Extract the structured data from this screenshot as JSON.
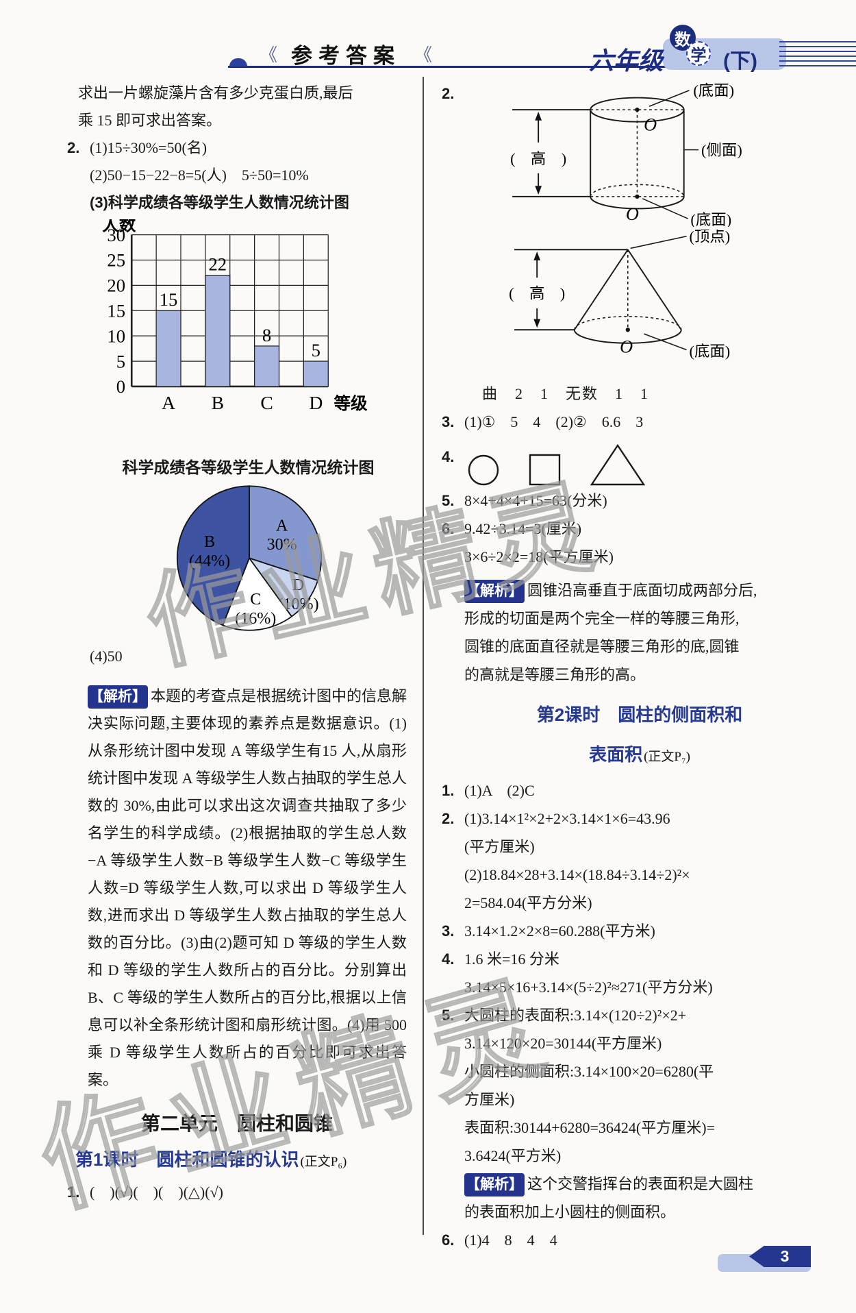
{
  "header": {
    "left_mark": "《",
    "title": "参考答案",
    "right_mark": "《",
    "grade": "六年级",
    "subject_top": "数",
    "subject_bottom": "学",
    "volume": "(下)"
  },
  "watermark": "作业精灵",
  "footer": {
    "page_number": "3"
  },
  "left_column": {
    "intro": "求出一片螺旋藻片含有多少克蛋白质,最后\n乘 15 即可求出答案。",
    "q2_num": "2.",
    "q2_lines": "(1)15÷30%=50(名)\n(2)50−15−22−8=5(人)　5÷50=10%",
    "q2_sub3": "(3)科学成绩各等级学生人数情况统计图",
    "answer_4": "(4)50",
    "analysis_label": "【解析】",
    "analysis_text": "本题的考查点是根据统计图中的信息解决实际问题,主要体现的素养点是数据意识。(1)从条形统计图中发现 A 等级学生有15 人,从扇形统计图中发现 A 等级学生人数占抽取的学生总人数的 30%,由此可以求出这次调查共抽取了多少名学生的科学成绩。(2)根据抽取的学生总人数−A 等级学生人数−B 等级学生人数−C 等级学生人数=D 等级学生人数,可以求出 D 等级学生人数,进而求出 D 等级学生人数占抽取的学生总人数的百分比。(3)由(2)题可知 D 等级的学生人数和 D 等级的学生人数所占的百分比。分别算出 B、C 等级的学生人数所占的百分比,根据以上信息可以补全条形统计图和扇形统计图。(4)用 500 乘 D 等级学生人数所占的百分比即可求出答案。",
    "unit_header": "第二单元　圆柱和圆锥",
    "lesson1_title": "第1课时　圆柱和圆锥的认识",
    "lesson1_ref": "(正文P₆)",
    "l1_q1_num": "1.",
    "l1_q1": "(　)(√)(　)(　)(△)(√)"
  },
  "right_column": {
    "q2_num": "2.",
    "cylinder_labels": {
      "base_top": "(底面)",
      "height": "(　高　)",
      "side": "(侧面)",
      "base_bottom": "(底面)",
      "center_top": "O",
      "center_bottom": "O"
    },
    "cone_labels": {
      "apex": "(顶点)",
      "height": "(　高　)",
      "base": "(底面)",
      "center": "O"
    },
    "fill_answers": "曲　2　1　无数　1　1",
    "q3_num": "3.",
    "q3": "(1)①　5　4　(2)②　6.6　3",
    "q4_num": "4.",
    "q5_num": "5.",
    "q5": "8×4+4×4+15=63(分米)",
    "q6_num": "6.",
    "q6": "9.42÷3.14=3(厘米)\n3×6÷2×2=18(平方厘米)",
    "analysis1_label": "【解析】",
    "analysis1": "圆锥沿高垂直于底面切成两部分后,\n形成的切面是两个完全一样的等腰三角形,\n圆锥的底面直径就是等腰三角形的底,圆锥\n的高就是等腰三角形的高。",
    "lesson2_title_l1": "第2课时　圆柱的侧面积和",
    "lesson2_title_l2": "表面积",
    "lesson2_ref": "(正文P₇)",
    "s2_q1_num": "1.",
    "s2_q1": "(1)A　(2)C",
    "s2_q2_num": "2.",
    "s2_q2": "(1)3.14×1²×2+2×3.14×1×6=43.96\n(平方厘米)\n(2)18.84×28+3.14×(18.84÷3.14÷2)²×\n2=584.04(平方分米)",
    "s2_q3_num": "3.",
    "s2_q3": "3.14×1.2×2×8=60.288(平方米)",
    "s2_q4_num": "4.",
    "s2_q4": "1.6 米=16 分米\n3.14×5×16+3.14×(5÷2)²≈271(平方分米)",
    "s2_q5_num": "5.",
    "s2_q5": "大圆柱的表面积:3.14×(120÷2)²×2+\n3.14×120×20=30144(平方厘米)\n小圆柱的侧面积:3.14×100×20=6280(平\n方厘米)\n表面积:30144+6280=36424(平方厘米)=\n3.6424(平方米)",
    "analysis2_label": "【解析】",
    "analysis2": "这个交警指挥台的表面积是大圆柱\n的表面积加上小圆柱的侧面积。",
    "s2_q6_num": "6.",
    "s2_q6": "(1)4　8　4　4"
  },
  "chart_data": [
    {
      "type": "bar",
      "title": "科学成绩各等级学生人数情况统计图",
      "categories": [
        "A",
        "B",
        "C",
        "D"
      ],
      "values": [
        15,
        22,
        8,
        5
      ],
      "ylabel": "人数",
      "xlabel": "等级",
      "ylim": [
        0,
        30
      ],
      "ytick_step": 5,
      "grid": true,
      "bar_color": "#a8b5e0"
    },
    {
      "type": "pie",
      "title": "科学成绩各等级学生人数情况统计图",
      "slices": [
        {
          "label": "A",
          "value": 30,
          "text_lines": [
            "A",
            "30%"
          ],
          "color": "#8497ce",
          "label_r": 0.56
        },
        {
          "label": "D",
          "value": 10,
          "text_lines": [
            "D",
            "(10%)"
          ],
          "color": "#c9d5ef",
          "label_r": 0.84
        },
        {
          "label": "C",
          "value": 16,
          "text_lines": [
            "C",
            "(16%)"
          ],
          "color": "#ffffff",
          "label_r": 0.7
        },
        {
          "label": "B",
          "value": 44,
          "text_lines": [
            "B",
            "(44%)"
          ],
          "color": "#3e54a3",
          "label_r": 0.56
        }
      ]
    }
  ]
}
